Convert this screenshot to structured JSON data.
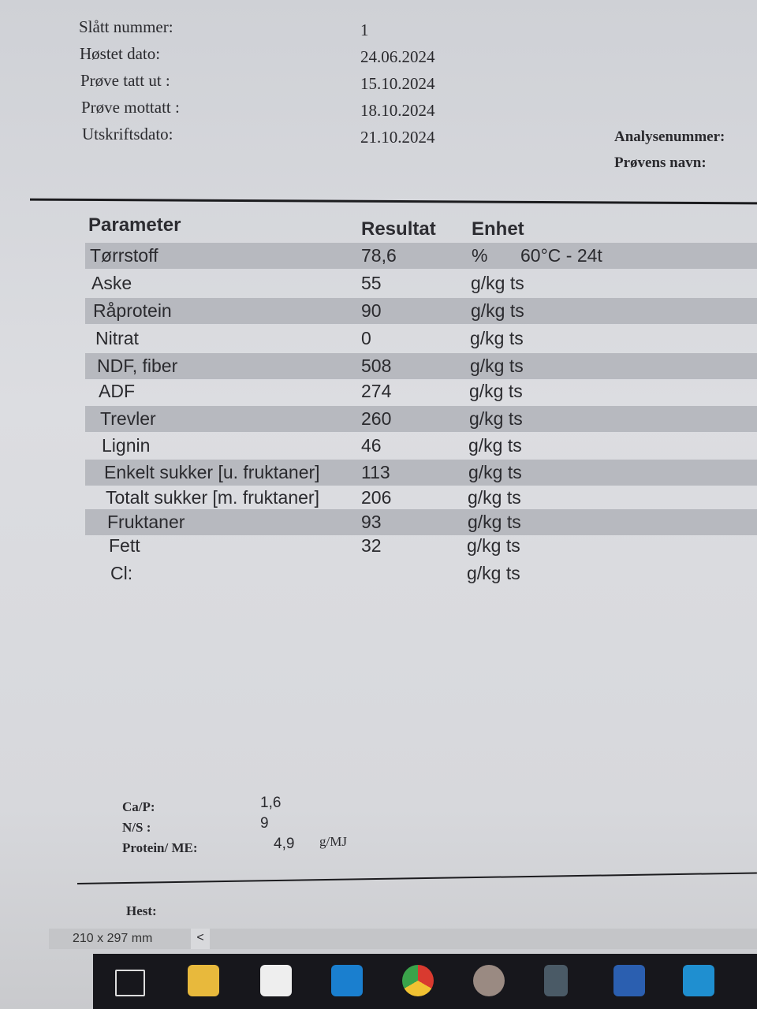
{
  "header": {
    "fields": [
      {
        "label": "Slått nummer:",
        "value": "1"
      },
      {
        "label": "Høstet dato:",
        "value": "24.06.2024"
      },
      {
        "label": "Prøve tatt ut :",
        "value": "15.10.2024"
      },
      {
        "label": "Prøve mottatt :",
        "value": "18.10.2024"
      },
      {
        "label": "Utskriftsdato:",
        "value": "21.10.2024"
      }
    ],
    "analysenummer_label": "Analysenummer:",
    "provens_navn_label": "Prøvens navn:"
  },
  "table": {
    "headers": [
      "Parameter",
      "Resultat",
      "Enhet"
    ],
    "rows": [
      {
        "param": "Tørrstoff",
        "result": "78,6",
        "unit": "%",
        "note": "60°C - 24t"
      },
      {
        "param": "Aske",
        "result": "55",
        "unit": "g/kg ts"
      },
      {
        "param": "Råprotein",
        "result": "90",
        "unit": "g/kg ts"
      },
      {
        "param": "Nitrat",
        "result": "0",
        "unit": "g/kg ts"
      },
      {
        "param": "NDF, fiber",
        "result": "508",
        "unit": "g/kg ts"
      },
      {
        "param": "ADF",
        "result": "274",
        "unit": "g/kg ts"
      },
      {
        "param": "Trevler",
        "result": "260",
        "unit": "g/kg ts"
      },
      {
        "param": "Lignin",
        "result": "46",
        "unit": "g/kg ts"
      },
      {
        "param": "Enkelt sukker [u. fruktaner]",
        "result": "113",
        "unit": "g/kg ts"
      },
      {
        "param": "Totalt sukker [m. fruktaner]",
        "result": "206",
        "unit": "g/kg ts"
      },
      {
        "param": "Fruktaner",
        "result": "93",
        "unit": "g/kg ts"
      },
      {
        "param": "Fett",
        "result": "32",
        "unit": "g/kg ts"
      },
      {
        "param": "Cl:",
        "result": "",
        "unit": "g/kg ts"
      }
    ]
  },
  "ratios": [
    {
      "label": "Ca/P:",
      "value": "1,6"
    },
    {
      "label": "N/S :",
      "value": "9"
    },
    {
      "label": "Protein/ ME:",
      "value": "4,9",
      "unit": "g/MJ"
    }
  ],
  "hest_label": "Hest:",
  "statusbar": {
    "page_size": "210 x 297 mm",
    "scroll_left": "<"
  },
  "taskbar": {
    "icons": [
      "task-view-icon",
      "file-explorer-icon",
      "microsoft-store-icon",
      "outlook-icon",
      "chrome-icon",
      "snipping-tool-icon",
      "calculator-icon",
      "word-icon",
      "photos-icon"
    ]
  }
}
